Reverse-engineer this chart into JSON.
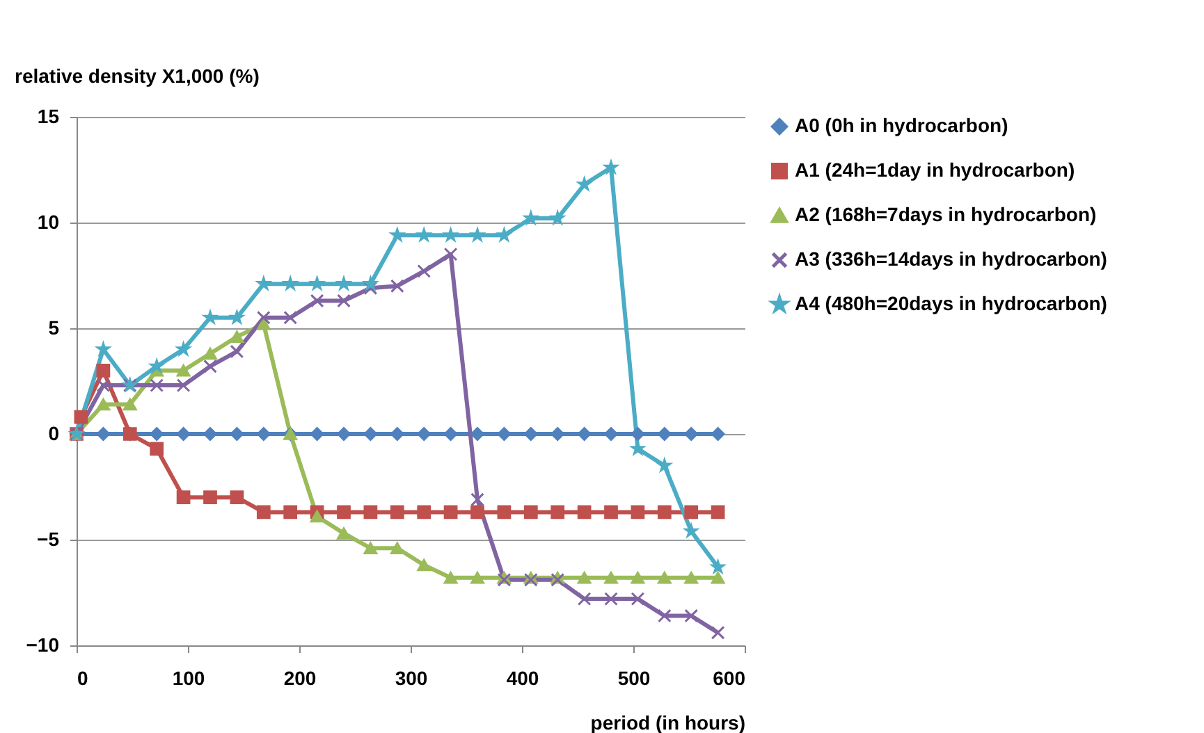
{
  "chart_data": {
    "type": "line",
    "ylabel": "relative density X1,000 (%)",
    "xlabel": "period (in hours)",
    "x": [
      0,
      24,
      48,
      72,
      96,
      120,
      144,
      168,
      192,
      216,
      240,
      264,
      288,
      312,
      336,
      360,
      384,
      408,
      432,
      456,
      480,
      504,
      528,
      552,
      576
    ],
    "xlim": [
      0,
      600
    ],
    "xticks": [
      0,
      100,
      200,
      300,
      400,
      500,
      600
    ],
    "ylim": [
      -10,
      15
    ],
    "yticks": [
      -10,
      -5,
      0,
      5,
      10,
      15
    ],
    "grid": "y",
    "legend": "right",
    "series": [
      {
        "name": "A0 (0h in hydrocarbon)",
        "color": "#4f81bd",
        "marker": "diamond",
        "values": [
          0,
          0,
          0,
          0,
          0,
          0,
          0,
          0,
          0,
          0,
          0,
          0,
          0,
          0,
          0,
          0,
          0,
          0,
          0,
          0,
          0,
          0,
          0,
          0,
          0
        ]
      },
      {
        "name": "A1 (24h=1day in hydrocarbon)",
        "color": "#c0504d",
        "marker": "square",
        "x": [
          0,
          4,
          24,
          48,
          72,
          96,
          120,
          144,
          168,
          192,
          216,
          240,
          264,
          288,
          312,
          336,
          360,
          384,
          408,
          432,
          456,
          480,
          504,
          528,
          552,
          576
        ],
        "values": [
          0,
          0.8,
          3.0,
          0,
          -0.7,
          -3.0,
          -3.0,
          -3.0,
          -3.7,
          -3.7,
          -3.7,
          -3.7,
          -3.7,
          -3.7,
          -3.7,
          -3.7,
          -3.7,
          -3.7,
          -3.7,
          -3.7,
          -3.7,
          -3.7,
          -3.7,
          -3.7,
          -3.7,
          -3.7
        ]
      },
      {
        "name": "A2 (168h=7days in hydrocarbon)",
        "color": "#9bbb59",
        "marker": "triangle",
        "values": [
          0,
          1.4,
          1.4,
          3.0,
          3.0,
          3.8,
          4.6,
          5.2,
          0,
          -3.9,
          -4.7,
          -5.4,
          -5.4,
          -6.2,
          -6.8,
          -6.8,
          -6.8,
          -6.8,
          -6.8,
          -6.8,
          -6.8,
          -6.8,
          -6.8,
          -6.8,
          -6.8
        ]
      },
      {
        "name": "A3 (336h=14days in hydrocarbon)",
        "color": "#8064a2",
        "marker": "cross",
        "values": [
          0,
          2.3,
          2.3,
          2.3,
          2.3,
          3.2,
          3.9,
          5.5,
          5.5,
          6.3,
          6.3,
          6.9,
          7.0,
          7.7,
          8.5,
          -3.1,
          -6.9,
          -6.9,
          -6.9,
          -7.8,
          -7.8,
          -7.8,
          -8.6,
          -8.6,
          -9.4
        ]
      },
      {
        "name": "A4 (480h=20days in hydrocarbon)",
        "color": "#4bacc6",
        "marker": "star",
        "values": [
          0,
          4.0,
          2.3,
          3.2,
          4.0,
          5.5,
          5.5,
          7.1,
          7.1,
          7.1,
          7.1,
          7.1,
          9.4,
          9.4,
          9.4,
          9.4,
          9.4,
          10.2,
          10.2,
          11.8,
          12.6,
          -0.7,
          -1.5,
          -4.6,
          -6.3
        ]
      }
    ]
  }
}
